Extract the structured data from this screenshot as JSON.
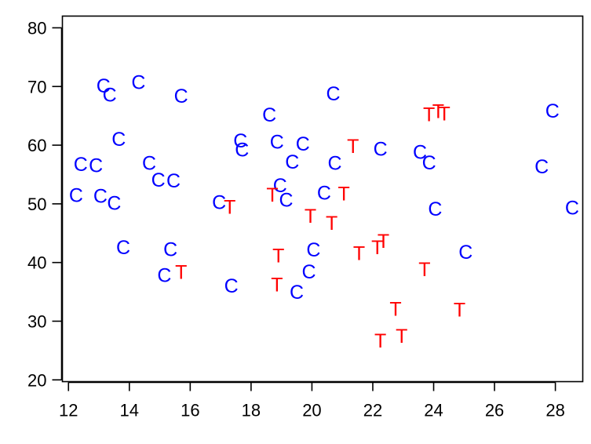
{
  "chart_data": {
    "type": "scatter",
    "title": "",
    "xlabel": "",
    "ylabel": "",
    "xlim": [
      11.8,
      28.9
    ],
    "ylim": [
      19.7,
      82.0
    ],
    "x_ticks": [
      12,
      14,
      16,
      18,
      20,
      22,
      24,
      26,
      28
    ],
    "y_ticks": [
      20,
      30,
      40,
      50,
      60,
      70,
      80
    ],
    "grid": false,
    "legend": "none",
    "series": [
      {
        "marker": "C",
        "color": "#0000ff",
        "points": [
          [
            12.25,
            51.5
          ],
          [
            12.4,
            56.8
          ],
          [
            12.9,
            56.6
          ],
          [
            13.05,
            51.4
          ],
          [
            13.15,
            70.2
          ],
          [
            13.35,
            68.6
          ],
          [
            13.5,
            50.2
          ],
          [
            13.65,
            61.1
          ],
          [
            13.8,
            42.6
          ],
          [
            14.3,
            70.8
          ],
          [
            14.65,
            57.0
          ],
          [
            14.95,
            54.1
          ],
          [
            15.15,
            37.9
          ],
          [
            15.35,
            42.3
          ],
          [
            15.45,
            54.0
          ],
          [
            15.7,
            68.4
          ],
          [
            16.95,
            50.3
          ],
          [
            17.35,
            36.1
          ],
          [
            17.65,
            60.8
          ],
          [
            17.7,
            59.3
          ],
          [
            18.6,
            65.2
          ],
          [
            18.85,
            60.6
          ],
          [
            18.95,
            53.2
          ],
          [
            19.15,
            50.7
          ],
          [
            19.35,
            57.2
          ],
          [
            19.5,
            35.0
          ],
          [
            19.7,
            60.3
          ],
          [
            19.9,
            38.5
          ],
          [
            20.05,
            42.2
          ],
          [
            20.4,
            51.9
          ],
          [
            20.7,
            68.8
          ],
          [
            20.75,
            57.0
          ],
          [
            22.25,
            59.4
          ],
          [
            23.55,
            58.9
          ],
          [
            23.85,
            57.1
          ],
          [
            24.05,
            49.2
          ],
          [
            25.05,
            41.8
          ],
          [
            27.55,
            56.4
          ],
          [
            27.9,
            65.9
          ],
          [
            28.55,
            49.4
          ]
        ]
      },
      {
        "marker": "T",
        "color": "#ff0000",
        "points": [
          [
            15.7,
            38.4
          ],
          [
            17.3,
            49.5
          ],
          [
            18.7,
            51.6
          ],
          [
            18.85,
            36.3
          ],
          [
            18.9,
            41.2
          ],
          [
            19.95,
            48.0
          ],
          [
            20.65,
            46.8
          ],
          [
            21.05,
            51.8
          ],
          [
            21.35,
            59.9
          ],
          [
            21.55,
            41.6
          ],
          [
            22.15,
            42.6
          ],
          [
            22.25,
            26.7
          ],
          [
            22.35,
            43.7
          ],
          [
            22.75,
            32.1
          ],
          [
            22.95,
            27.5
          ],
          [
            23.7,
            38.9
          ],
          [
            23.85,
            65.3
          ],
          [
            24.15,
            65.8
          ],
          [
            24.35,
            65.4
          ],
          [
            24.85,
            32.0
          ]
        ]
      }
    ]
  }
}
